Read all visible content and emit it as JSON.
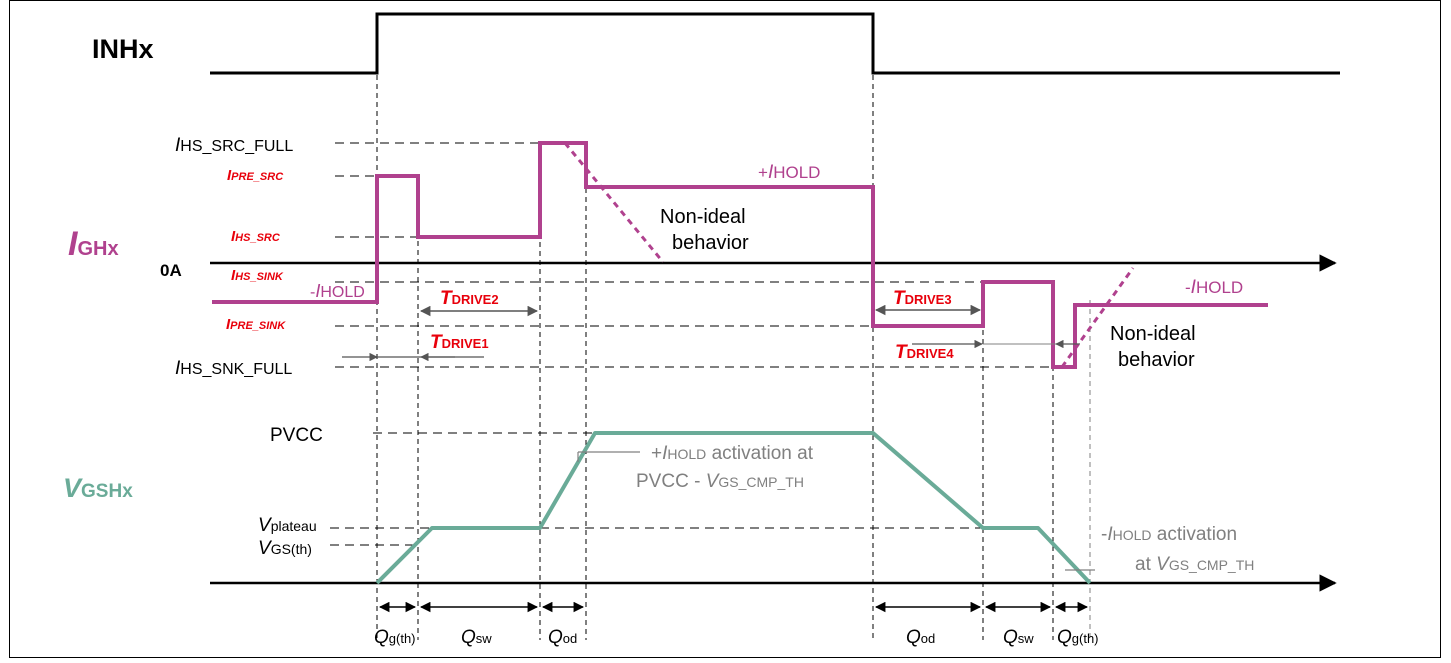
{
  "colors": {
    "gate_current": "#b0418e",
    "gate_voltage": "#6aab98",
    "register": "#e8000b",
    "annotation": "#808080"
  },
  "signals": {
    "inh": "INHx",
    "igh_main": "I",
    "igh_sub": "GHx",
    "vgsh_main": "V",
    "vgsh_sub": "GSHx",
    "zero": "0A"
  },
  "levels": {
    "hs_src_full_main": "I",
    "hs_src_full_sub": "HS_SRC_FULL",
    "pre_src_main": "I",
    "pre_src_sub": "PRE_SRC",
    "hs_src_main": "I",
    "hs_src_sub": "HS_SRC",
    "hs_sink_main": "I",
    "hs_sink_sub": "HS_SINK",
    "pre_sink_main": "I",
    "pre_sink_sub": "PRE_SINK",
    "hs_snk_full_main": "I",
    "hs_snk_full_sub": "HS_SNK_FULL",
    "neg_hold_left_prefix": "-",
    "neg_hold_left_main": "I",
    "neg_hold_left_sub": "HOLD",
    "pvcc": "PVCC",
    "vplateau_main": "V",
    "vplateau_sub": "plateau",
    "vgsth_main": "V",
    "vgsth_sub": "GS(th)"
  },
  "annotations": {
    "pos_hold_prefix": "+",
    "pos_hold_main": "I",
    "pos_hold_sub": "HOLD",
    "neg_hold_prefix": "-",
    "neg_hold_main": "I",
    "neg_hold_sub": "HOLD",
    "nonideal_1_line1": "Non-ideal",
    "nonideal_1_line2": "behavior",
    "nonideal_2_line1": "Non-ideal",
    "nonideal_2_line2": "behavior",
    "tdrive1_main": "T",
    "tdrive1_sub": "DRIVE1",
    "tdrive2_main": "T",
    "tdrive2_sub": "DRIVE2",
    "tdrive3_main": "T",
    "tdrive3_sub": "DRIVE3",
    "tdrive4_main": "T",
    "tdrive4_sub": "DRIVE4",
    "pos_act_prefix": "+",
    "pos_act_main": "I",
    "pos_act_sub": "HOLD",
    "pos_act_rest": " activation at",
    "pos_act_line2_prefix": "PVCC - ",
    "pos_act_line2_main": "V",
    "pos_act_line2_sub": "GS_CMP_TH",
    "neg_act_prefix": "-",
    "neg_act_main": "I",
    "neg_act_sub": "HOLD",
    "neg_act_rest": " activation",
    "neg_act_line2_prefix": "at ",
    "neg_act_line2_main": "V",
    "neg_act_line2_sub": "GS_CMP_TH"
  },
  "charge_labels": {
    "qgth1_main": "Q",
    "qgth1_sub": "g(th)",
    "qsw1_main": "Q",
    "qsw1_sub": "sw",
    "qod1_main": "Q",
    "qod1_sub": "od",
    "qod2_main": "Q",
    "qod2_sub": "od",
    "qsw2_main": "Q",
    "qsw2_sub": "sw",
    "qgth2_main": "Q",
    "qgth2_sub": "g(th)"
  }
}
